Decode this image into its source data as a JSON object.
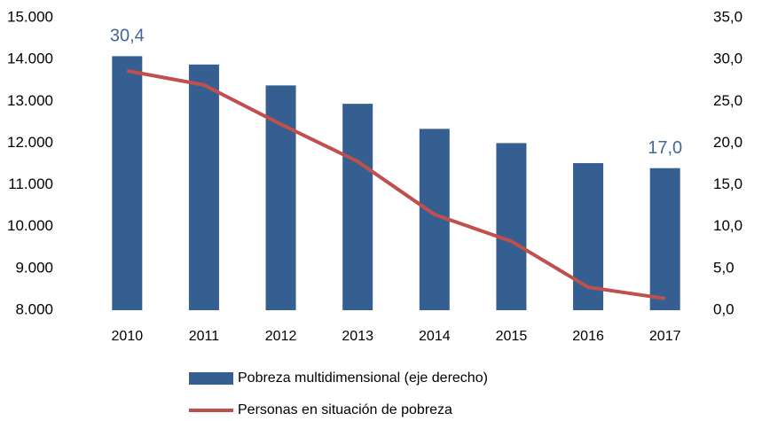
{
  "chart_data": {
    "type": "bar-line",
    "categories": [
      "2010",
      "2011",
      "2012",
      "2013",
      "2014",
      "2015",
      "2016",
      "2017"
    ],
    "series": [
      {
        "name": "Pobreza multidimensional (eje derecho)",
        "type": "bar",
        "axis": "y2",
        "color": "#355f91",
        "values": [
          30.4,
          29.4,
          26.9,
          24.7,
          21.7,
          20.0,
          17.6,
          17.0
        ],
        "value_labels": [
          "30,4",
          null,
          null,
          null,
          null,
          null,
          null,
          "17,0"
        ]
      },
      {
        "name": "Personas en situación de pobreza",
        "type": "line",
        "axis": "y",
        "color": "#c0504d",
        "values": [
          13730,
          13390,
          12450,
          11560,
          10290,
          9650,
          8550,
          8280
        ]
      }
    ],
    "ylim": [
      8000,
      15000
    ],
    "yticks": [
      {
        "value": 8000,
        "label": "8.000"
      },
      {
        "value": 9000,
        "label": "9.000"
      },
      {
        "value": 10000,
        "label": "10.000"
      },
      {
        "value": 11000,
        "label": "11.000"
      },
      {
        "value": 12000,
        "label": "12.000"
      },
      {
        "value": 13000,
        "label": "13.000"
      },
      {
        "value": 14000,
        "label": "14.000"
      },
      {
        "value": 15000,
        "label": "15.000"
      }
    ],
    "y2lim": [
      0,
      35
    ],
    "y2ticks": [
      {
        "value": 0,
        "label": "0,0"
      },
      {
        "value": 5,
        "label": "5,0"
      },
      {
        "value": 10,
        "label": "10,0"
      },
      {
        "value": 15,
        "label": "15,0"
      },
      {
        "value": 20,
        "label": "20,0"
      },
      {
        "value": 25,
        "label": "25,0"
      },
      {
        "value": 30,
        "label": "30,0"
      },
      {
        "value": 35,
        "label": "35,0"
      }
    ],
    "grid": false,
    "legend": "bottom"
  }
}
